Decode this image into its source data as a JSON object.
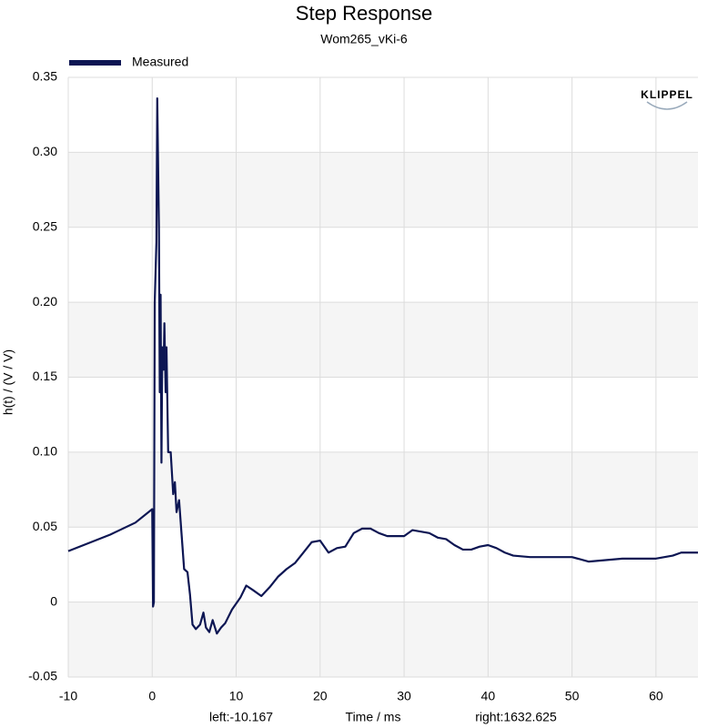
{
  "chart_data": {
    "type": "line",
    "title": "Step Response",
    "subtitle": "Wom265_vKi-6",
    "x_label": "Time / ms",
    "y_label": "h(t) / (V / V)",
    "annotations": [
      "left:-10.167",
      "right:1632.625"
    ],
    "logo": "KLIPPEL",
    "legend": "top-left",
    "grid": true,
    "xlim": [
      -10,
      65
    ],
    "xticks": [
      -10,
      0,
      10,
      20,
      30,
      40,
      50,
      60
    ],
    "ylim": [
      -0.05,
      0.35
    ],
    "yticks": [
      -0.05,
      0,
      0.05,
      {
        "value": 0.1,
        "label": "0.10"
      },
      0.15,
      {
        "value": 0.2,
        "label": "0.20"
      },
      0.25,
      {
        "value": 0.3,
        "label": "0.30"
      },
      0.35
    ],
    "x": [
      -10,
      -5,
      -2,
      0,
      0.1,
      0.2,
      0.3,
      0.5,
      0.6,
      0.8,
      0.9,
      1.0,
      1.1,
      1.2,
      1.35,
      1.45,
      1.6,
      1.7,
      1.9,
      2.2,
      2.5,
      2.7,
      2.9,
      3.2,
      3.5,
      3.8,
      4.2,
      4.5,
      4.8,
      5.2,
      5.7,
      6.1,
      6.4,
      6.8,
      7.2,
      7.7,
      8.2,
      8.7,
      9.5,
      10.5,
      11.2,
      12,
      13,
      14,
      15,
      16,
      17,
      18,
      19,
      20,
      21,
      22,
      23,
      24,
      25,
      26,
      27,
      28,
      29,
      30,
      31,
      32,
      33,
      34,
      35,
      36,
      37,
      38,
      39,
      40,
      41,
      42,
      43,
      45,
      48,
      50,
      52,
      54,
      56,
      58,
      60,
      62,
      63,
      65
    ],
    "series": [
      {
        "name": "Measured",
        "color": "#0d1653",
        "values": [
          0.034,
          0.045,
          0.053,
          0.062,
          -0.003,
          0.0,
          0.2,
          0.24,
          0.336,
          0.25,
          0.14,
          0.205,
          0.093,
          0.17,
          0.155,
          0.186,
          0.14,
          0.17,
          0.1,
          0.1,
          0.072,
          0.08,
          0.06,
          0.068,
          0.045,
          0.022,
          0.02,
          0.005,
          -0.015,
          -0.018,
          -0.015,
          -0.007,
          -0.017,
          -0.02,
          -0.012,
          -0.021,
          -0.017,
          -0.014,
          -0.005,
          0.003,
          0.011,
          0.008,
          0.004,
          0.01,
          0.017,
          0.022,
          0.026,
          0.033,
          0.04,
          0.041,
          0.033,
          0.036,
          0.037,
          0.046,
          0.049,
          0.049,
          0.046,
          0.044,
          0.044,
          0.044,
          0.048,
          0.047,
          0.046,
          0.043,
          0.042,
          0.038,
          0.035,
          0.035,
          0.037,
          0.038,
          0.036,
          0.033,
          0.031,
          0.03,
          0.03,
          0.03,
          0.027,
          0.028,
          0.029,
          0.029,
          0.029,
          0.031,
          0.033,
          0.033
        ]
      }
    ]
  }
}
